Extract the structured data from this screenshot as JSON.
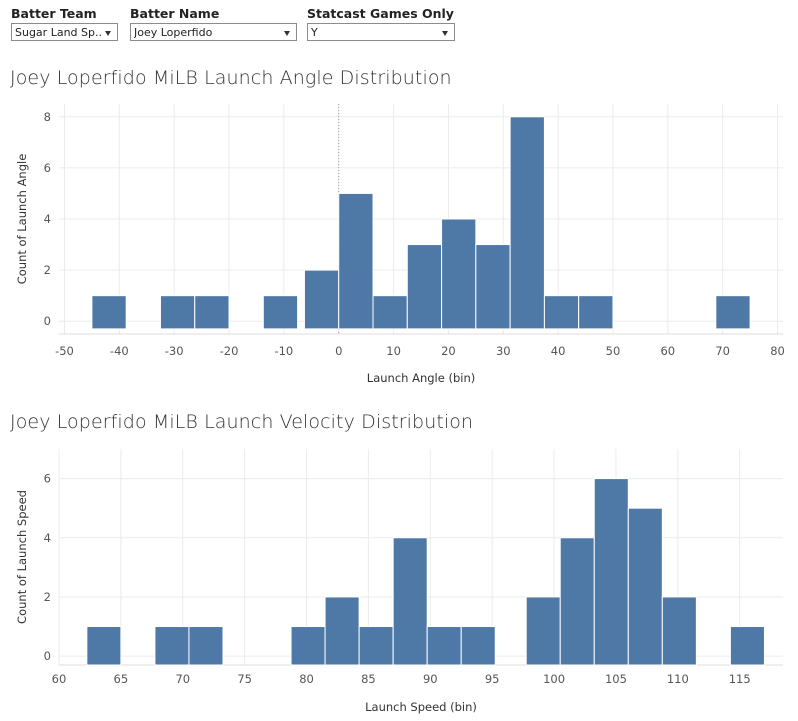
{
  "filters": [
    {
      "label": "Batter Team",
      "value": "Sugar Land Sp..."
    },
    {
      "label": "Batter Name",
      "value": "Joey Loperfido"
    },
    {
      "label": "Statcast Games Only",
      "value": "Y"
    }
  ],
  "colors": {
    "bar": "#4e79a7",
    "grid": "#ebebeb",
    "zero_line": "#999999"
  },
  "chart_data": [
    {
      "type": "bar",
      "title": "Joey Loperfido MiLB Launch Angle Distribution",
      "xlabel": "Launch Angle (bin)",
      "ylabel": "Count of Launch Angle",
      "xlim": [
        -51,
        81
      ],
      "ylim": [
        -0.5,
        8.5
      ],
      "bin_width": 6.25,
      "x_ticks": [
        -50,
        -40,
        -30,
        -20,
        -10,
        0,
        10,
        20,
        30,
        40,
        50,
        60,
        70,
        80
      ],
      "y_ticks": [
        0,
        2,
        4,
        6,
        8
      ],
      "reference_line_x": 0,
      "bins": [
        {
          "start": -45,
          "count": 1
        },
        {
          "start": -32.5,
          "count": 1
        },
        {
          "start": -26.25,
          "count": 1
        },
        {
          "start": -13.75,
          "count": 1
        },
        {
          "start": -6.25,
          "count": 2
        },
        {
          "start": 0,
          "count": 5
        },
        {
          "start": 6.25,
          "count": 1
        },
        {
          "start": 12.5,
          "count": 3
        },
        {
          "start": 18.75,
          "count": 4
        },
        {
          "start": 25,
          "count": 3
        },
        {
          "start": 31.25,
          "count": 8
        },
        {
          "start": 37.5,
          "count": 1
        },
        {
          "start": 43.75,
          "count": 1
        },
        {
          "start": 68.75,
          "count": 1
        }
      ]
    },
    {
      "type": "bar",
      "title": "Joey Loperfido MiLB Launch Velocity Distribution",
      "xlabel": "Launch Speed (bin)",
      "ylabel": "Count of Launch Speed",
      "xlim": [
        60,
        118.5
      ],
      "ylim": [
        -0.3,
        7
      ],
      "bin_width": 2.75,
      "x_ticks": [
        60,
        65,
        70,
        75,
        80,
        85,
        90,
        95,
        100,
        105,
        110,
        115
      ],
      "y_ticks": [
        0,
        2,
        4,
        6
      ],
      "bins": [
        {
          "start": 62.25,
          "count": 1
        },
        {
          "start": 67.75,
          "count": 1
        },
        {
          "start": 70.5,
          "count": 1
        },
        {
          "start": 78.75,
          "count": 1
        },
        {
          "start": 81.5,
          "count": 2
        },
        {
          "start": 84.25,
          "count": 1
        },
        {
          "start": 87,
          "count": 4
        },
        {
          "start": 89.75,
          "count": 1
        },
        {
          "start": 92.5,
          "count": 1
        },
        {
          "start": 97.75,
          "count": 2
        },
        {
          "start": 100.5,
          "count": 4
        },
        {
          "start": 103.25,
          "count": 6
        },
        {
          "start": 106,
          "count": 5
        },
        {
          "start": 108.75,
          "count": 2
        },
        {
          "start": 114.25,
          "count": 1
        }
      ]
    }
  ]
}
